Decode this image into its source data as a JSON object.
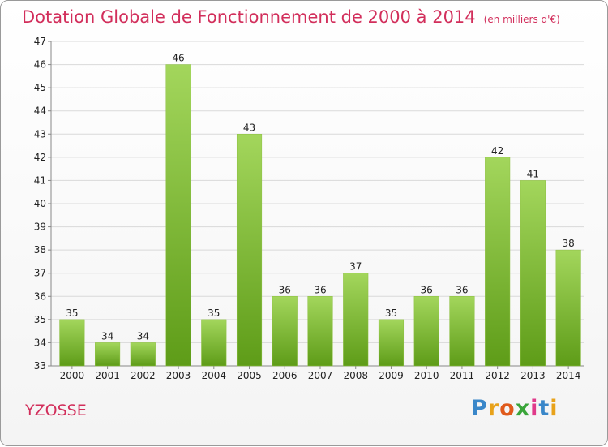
{
  "header": {
    "title": "Dotation Globale de Fonctionnement de 2000 à 2014",
    "unit": "(en milliers d'€)"
  },
  "footer": {
    "town": "YZOSSE",
    "logo": "Proxiti"
  },
  "colors": {
    "title": "#d22e5b",
    "bar_top": "#a3d65c",
    "bar_bottom": "#5e9c18",
    "grid": "#d9d9d9"
  },
  "chart_data": {
    "type": "bar",
    "title": "Dotation Globale de Fonctionnement de 2000 à 2014",
    "categories": [
      "2000",
      "2001",
      "2002",
      "2003",
      "2004",
      "2005",
      "2006",
      "2007",
      "2008",
      "2009",
      "2010",
      "2011",
      "2012",
      "2013",
      "2014"
    ],
    "values": [
      35,
      34,
      34,
      46,
      35,
      43,
      36,
      36,
      37,
      35,
      36,
      36,
      42,
      41,
      38
    ],
    "ylim": [
      33,
      47
    ],
    "yticks": [
      33,
      34,
      35,
      36,
      37,
      38,
      39,
      40,
      41,
      42,
      43,
      44,
      45,
      46,
      47
    ],
    "grid": true,
    "xlabel": "",
    "ylabel": ""
  }
}
